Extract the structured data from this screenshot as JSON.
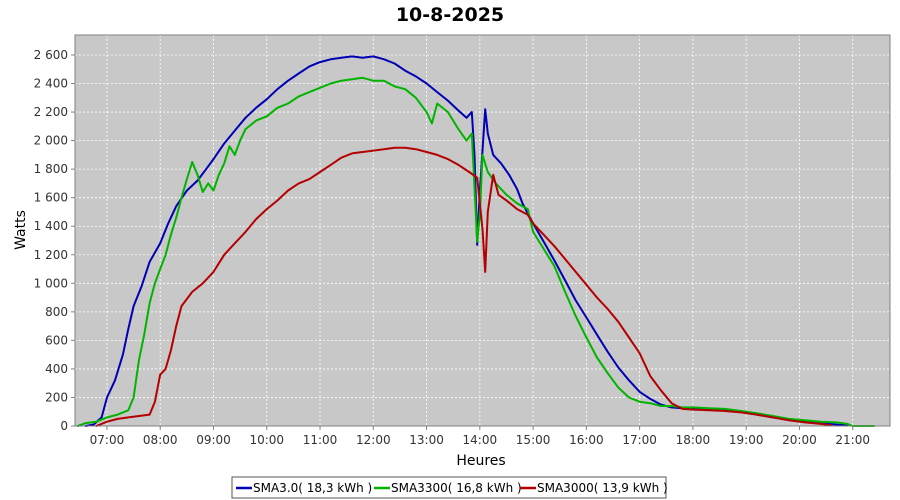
{
  "chart_data": {
    "type": "line",
    "title": "10-8-2025",
    "xlabel": "Heures",
    "ylabel": "Watts",
    "xlim": [
      6.4,
      21.7
    ],
    "ylim": [
      0,
      2740
    ],
    "grid": true,
    "legend_position": "bottom",
    "plot_background": "#c8c8c8",
    "x_ticks": [
      7,
      8,
      9,
      10,
      11,
      12,
      13,
      14,
      15,
      16,
      17,
      18,
      19,
      20,
      21
    ],
    "x_tick_labels": [
      "07:00",
      "08:00",
      "09:00",
      "10:00",
      "11:00",
      "12:00",
      "13:00",
      "14:00",
      "15:00",
      "16:00",
      "17:00",
      "18:00",
      "19:00",
      "20:00",
      "21:00"
    ],
    "y_ticks": [
      0,
      200,
      400,
      600,
      800,
      1000,
      1200,
      1400,
      1600,
      1800,
      2000,
      2200,
      2400,
      2600
    ],
    "y_tick_labels": [
      "0",
      "200",
      "400",
      "600",
      "800",
      "1 000",
      "1 200",
      "1 400",
      "1 600",
      "1 800",
      "2 000",
      "2 200",
      "2 400",
      "2 600"
    ],
    "series": [
      {
        "name": "SMA3.0( 18,3 kWh )",
        "color": "#0000b4",
        "points": [
          [
            6.6,
            0
          ],
          [
            6.75,
            10
          ],
          [
            6.9,
            60
          ],
          [
            7.0,
            200
          ],
          [
            7.15,
            320
          ],
          [
            7.3,
            500
          ],
          [
            7.4,
            680
          ],
          [
            7.5,
            840
          ],
          [
            7.65,
            980
          ],
          [
            7.8,
            1150
          ],
          [
            8.0,
            1280
          ],
          [
            8.15,
            1420
          ],
          [
            8.3,
            1540
          ],
          [
            8.5,
            1650
          ],
          [
            8.7,
            1720
          ],
          [
            8.9,
            1820
          ],
          [
            9.0,
            1870
          ],
          [
            9.2,
            1980
          ],
          [
            9.4,
            2070
          ],
          [
            9.6,
            2160
          ],
          [
            9.8,
            2230
          ],
          [
            10.0,
            2290
          ],
          [
            10.2,
            2360
          ],
          [
            10.4,
            2420
          ],
          [
            10.6,
            2470
          ],
          [
            10.8,
            2520
          ],
          [
            11.0,
            2550
          ],
          [
            11.2,
            2570
          ],
          [
            11.4,
            2580
          ],
          [
            11.6,
            2590
          ],
          [
            11.8,
            2580
          ],
          [
            12.0,
            2590
          ],
          [
            12.2,
            2570
          ],
          [
            12.4,
            2540
          ],
          [
            12.6,
            2490
          ],
          [
            12.8,
            2450
          ],
          [
            13.0,
            2400
          ],
          [
            13.2,
            2340
          ],
          [
            13.4,
            2280
          ],
          [
            13.6,
            2210
          ],
          [
            13.75,
            2160
          ],
          [
            13.85,
            2200
          ],
          [
            13.9,
            1900
          ],
          [
            13.95,
            1270
          ],
          [
            14.0,
            1640
          ],
          [
            14.1,
            2220
          ],
          [
            14.15,
            2050
          ],
          [
            14.25,
            1900
          ],
          [
            14.4,
            1840
          ],
          [
            14.55,
            1760
          ],
          [
            14.7,
            1660
          ],
          [
            14.8,
            1560
          ],
          [
            15.0,
            1420
          ],
          [
            15.2,
            1290
          ],
          [
            15.4,
            1160
          ],
          [
            15.6,
            1020
          ],
          [
            15.8,
            880
          ],
          [
            16.0,
            760
          ],
          [
            16.2,
            640
          ],
          [
            16.4,
            520
          ],
          [
            16.6,
            410
          ],
          [
            16.8,
            320
          ],
          [
            17.0,
            240
          ],
          [
            17.2,
            190
          ],
          [
            17.4,
            150
          ],
          [
            17.6,
            130
          ],
          [
            17.8,
            125
          ],
          [
            18.0,
            120
          ],
          [
            18.3,
            120
          ],
          [
            18.6,
            115
          ],
          [
            18.9,
            100
          ],
          [
            19.2,
            80
          ],
          [
            19.5,
            60
          ],
          [
            19.8,
            45
          ],
          [
            20.1,
            30
          ],
          [
            20.4,
            20
          ],
          [
            20.7,
            10
          ],
          [
            20.9,
            5
          ]
        ]
      },
      {
        "name": "SMA3300( 16,8 kWh )",
        "color": "#00b400",
        "points": [
          [
            6.45,
            0
          ],
          [
            6.6,
            20
          ],
          [
            6.8,
            30
          ],
          [
            7.0,
            60
          ],
          [
            7.2,
            80
          ],
          [
            7.4,
            110
          ],
          [
            7.5,
            200
          ],
          [
            7.6,
            460
          ],
          [
            7.7,
            640
          ],
          [
            7.8,
            860
          ],
          [
            7.9,
            1000
          ],
          [
            8.0,
            1100
          ],
          [
            8.1,
            1200
          ],
          [
            8.2,
            1340
          ],
          [
            8.3,
            1460
          ],
          [
            8.4,
            1600
          ],
          [
            8.5,
            1730
          ],
          [
            8.6,
            1850
          ],
          [
            8.7,
            1760
          ],
          [
            8.8,
            1640
          ],
          [
            8.9,
            1700
          ],
          [
            9.0,
            1650
          ],
          [
            9.1,
            1760
          ],
          [
            9.2,
            1840
          ],
          [
            9.3,
            1960
          ],
          [
            9.4,
            1900
          ],
          [
            9.5,
            2000
          ],
          [
            9.6,
            2080
          ],
          [
            9.8,
            2140
          ],
          [
            10.0,
            2170
          ],
          [
            10.2,
            2230
          ],
          [
            10.4,
            2260
          ],
          [
            10.6,
            2310
          ],
          [
            10.8,
            2340
          ],
          [
            11.0,
            2370
          ],
          [
            11.2,
            2400
          ],
          [
            11.4,
            2420
          ],
          [
            11.6,
            2430
          ],
          [
            11.8,
            2440
          ],
          [
            12.0,
            2420
          ],
          [
            12.2,
            2420
          ],
          [
            12.4,
            2380
          ],
          [
            12.6,
            2360
          ],
          [
            12.8,
            2300
          ],
          [
            13.0,
            2200
          ],
          [
            13.1,
            2120
          ],
          [
            13.2,
            2260
          ],
          [
            13.4,
            2200
          ],
          [
            13.6,
            2080
          ],
          [
            13.75,
            2000
          ],
          [
            13.85,
            2050
          ],
          [
            13.95,
            1290
          ],
          [
            14.0,
            1480
          ],
          [
            14.05,
            1900
          ],
          [
            14.15,
            1780
          ],
          [
            14.3,
            1700
          ],
          [
            14.5,
            1620
          ],
          [
            14.7,
            1560
          ],
          [
            14.9,
            1520
          ],
          [
            15.0,
            1360
          ],
          [
            15.2,
            1240
          ],
          [
            15.4,
            1120
          ],
          [
            15.6,
            940
          ],
          [
            15.8,
            770
          ],
          [
            16.0,
            620
          ],
          [
            16.2,
            480
          ],
          [
            16.4,
            370
          ],
          [
            16.6,
            270
          ],
          [
            16.8,
            200
          ],
          [
            17.0,
            170
          ],
          [
            17.2,
            160
          ],
          [
            17.4,
            140
          ],
          [
            17.6,
            140
          ],
          [
            17.8,
            130
          ],
          [
            18.0,
            130
          ],
          [
            18.3,
            125
          ],
          [
            18.6,
            120
          ],
          [
            18.9,
            105
          ],
          [
            19.2,
            90
          ],
          [
            19.5,
            70
          ],
          [
            19.8,
            50
          ],
          [
            20.1,
            40
          ],
          [
            20.4,
            30
          ],
          [
            20.7,
            25
          ],
          [
            20.9,
            15
          ],
          [
            21.0,
            0
          ],
          [
            21.4,
            0
          ]
        ]
      },
      {
        "name": "SMA3000( 13,9 kWh )",
        "color": "#b40000",
        "points": [
          [
            6.8,
            0
          ],
          [
            7.0,
            30
          ],
          [
            7.2,
            50
          ],
          [
            7.4,
            60
          ],
          [
            7.6,
            70
          ],
          [
            7.8,
            80
          ],
          [
            7.9,
            170
          ],
          [
            8.0,
            360
          ],
          [
            8.1,
            400
          ],
          [
            8.2,
            530
          ],
          [
            8.3,
            700
          ],
          [
            8.4,
            840
          ],
          [
            8.6,
            940
          ],
          [
            8.8,
            1000
          ],
          [
            9.0,
            1080
          ],
          [
            9.2,
            1200
          ],
          [
            9.4,
            1280
          ],
          [
            9.6,
            1360
          ],
          [
            9.8,
            1450
          ],
          [
            10.0,
            1520
          ],
          [
            10.2,
            1580
          ],
          [
            10.4,
            1650
          ],
          [
            10.6,
            1700
          ],
          [
            10.8,
            1730
          ],
          [
            11.0,
            1780
          ],
          [
            11.2,
            1830
          ],
          [
            11.4,
            1880
          ],
          [
            11.6,
            1910
          ],
          [
            11.8,
            1920
          ],
          [
            12.0,
            1930
          ],
          [
            12.2,
            1940
          ],
          [
            12.4,
            1950
          ],
          [
            12.6,
            1950
          ],
          [
            12.8,
            1940
          ],
          [
            13.0,
            1920
          ],
          [
            13.2,
            1900
          ],
          [
            13.4,
            1870
          ],
          [
            13.6,
            1830
          ],
          [
            13.8,
            1780
          ],
          [
            13.95,
            1740
          ],
          [
            14.05,
            1380
          ],
          [
            14.1,
            1080
          ],
          [
            14.15,
            1500
          ],
          [
            14.25,
            1760
          ],
          [
            14.35,
            1620
          ],
          [
            14.5,
            1580
          ],
          [
            14.7,
            1520
          ],
          [
            14.9,
            1480
          ],
          [
            15.0,
            1420
          ],
          [
            15.2,
            1340
          ],
          [
            15.4,
            1260
          ],
          [
            15.6,
            1170
          ],
          [
            15.8,
            1080
          ],
          [
            16.0,
            990
          ],
          [
            16.2,
            900
          ],
          [
            16.4,
            820
          ],
          [
            16.6,
            730
          ],
          [
            16.8,
            620
          ],
          [
            17.0,
            510
          ],
          [
            17.2,
            350
          ],
          [
            17.4,
            250
          ],
          [
            17.6,
            160
          ],
          [
            17.8,
            120
          ],
          [
            18.0,
            115
          ],
          [
            18.3,
            110
          ],
          [
            18.6,
            105
          ],
          [
            18.9,
            95
          ],
          [
            19.2,
            80
          ],
          [
            19.5,
            60
          ],
          [
            19.8,
            40
          ],
          [
            20.1,
            25
          ],
          [
            20.4,
            15
          ],
          [
            20.6,
            5
          ]
        ]
      }
    ]
  }
}
